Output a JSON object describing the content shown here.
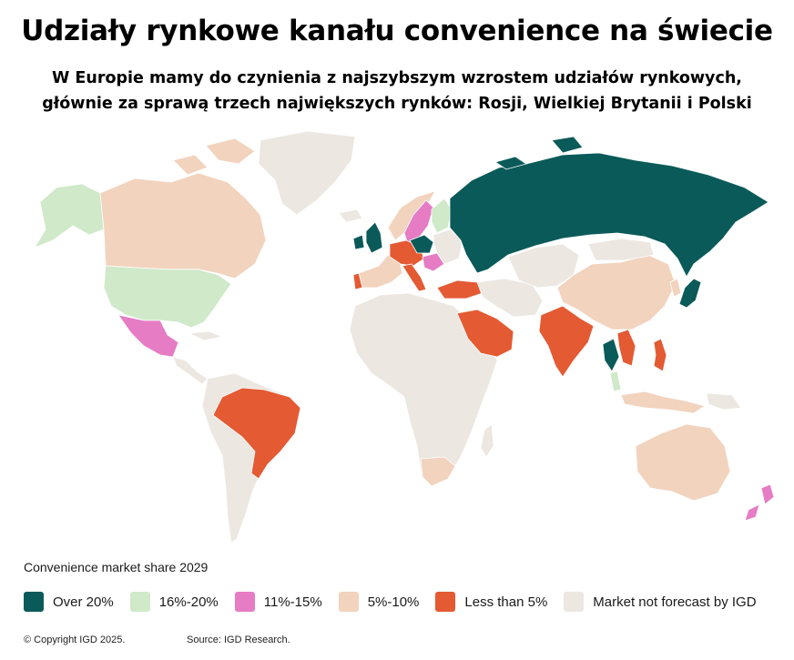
{
  "header": {
    "title": "Udziały rynkowe kanału convenience na świecie",
    "subtitle_line1": "W Europie mamy do czynienia z najszybszym wzrostem udziałów rynkowych,",
    "subtitle_line2": "głównie za sprawą trzech największych rynków: Rosji, Wielkiej Brytanii i Polski"
  },
  "colors": {
    "over20": "#0b5a5a",
    "p16_20": "#cfe9c9",
    "p11_15": "#e57cc4",
    "p5_10": "#f2d3be",
    "less5": "#e35a33",
    "notForecast": "#ece7e1"
  },
  "legend": {
    "title": "Convenience market share 2029",
    "items": [
      {
        "key": "over20",
        "label": "Over 20%"
      },
      {
        "key": "p16_20",
        "label": "16%-20%"
      },
      {
        "key": "p11_15",
        "label": "11%-15%"
      },
      {
        "key": "p5_10",
        "label": "5%-10%"
      },
      {
        "key": "less5",
        "label": "Less than 5%"
      },
      {
        "key": "notForecast",
        "label": "Market not forecast by IGD"
      }
    ]
  },
  "footer": {
    "copyright": "© Copyright IGD 2025.",
    "source": "Source: IGD Research."
  }
}
